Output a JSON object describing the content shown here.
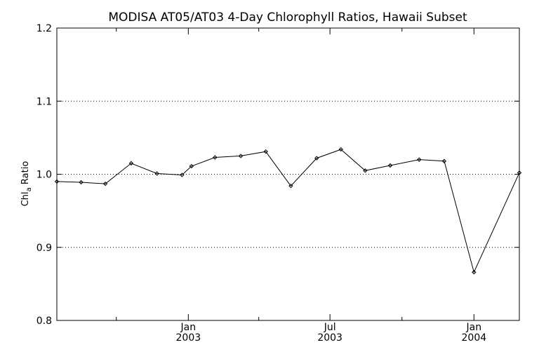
{
  "chart_data": {
    "type": "line",
    "title": "MODISA AT05/AT03 4-Day Chlorophyll Ratios, Hawaii Subset",
    "ylabel": {
      "main": "Chl",
      "sub": "a",
      "suffix": " Ratio"
    },
    "xlabel": "",
    "ylim": [
      0.8,
      1.2
    ],
    "yticks": [
      "0.8",
      "0.9",
      "1.0",
      "1.1",
      "1.2"
    ],
    "ytick_values": [
      0.8,
      0.9,
      1.0,
      1.1,
      1.2
    ],
    "ygrid_values": [
      0.9,
      1.0,
      1.1
    ],
    "xlim": [
      "2002-07-17",
      "2004-02-28"
    ],
    "xtick_labels": [
      {
        "date": "2003-01-01",
        "month": "Jan",
        "year": "2003"
      },
      {
        "date": "2003-07-01",
        "month": "Jul",
        "year": "2003"
      },
      {
        "date": "2004-01-01",
        "month": "Jan",
        "year": "2004"
      }
    ],
    "xminor_dates": [
      "2002-10-01",
      "2003-04-01",
      "2003-10-01"
    ],
    "grid": "dotted horizontal",
    "series": [
      {
        "color": "#000000",
        "points": [
          {
            "x": "2002-07-17",
            "y": 0.99
          },
          {
            "x": "2002-08-17",
            "y": 0.989
          },
          {
            "x": "2002-09-17",
            "y": 0.987
          },
          {
            "x": "2002-10-20",
            "y": 1.015
          },
          {
            "x": "2002-11-22",
            "y": 1.001
          },
          {
            "x": "2002-12-24",
            "y": 0.999
          },
          {
            "x": "2003-01-05",
            "y": 1.011
          },
          {
            "x": "2003-02-04",
            "y": 1.023
          },
          {
            "x": "2003-03-09",
            "y": 1.025
          },
          {
            "x": "2003-04-10",
            "y": 1.031
          },
          {
            "x": "2003-05-12",
            "y": 0.984
          },
          {
            "x": "2003-06-14",
            "y": 1.022
          },
          {
            "x": "2003-07-15",
            "y": 1.034
          },
          {
            "x": "2003-08-15",
            "y": 1.005
          },
          {
            "x": "2003-09-16",
            "y": 1.012
          },
          {
            "x": "2003-10-23",
            "y": 1.02
          },
          {
            "x": "2003-11-24",
            "y": 1.018
          },
          {
            "x": "2004-01-01",
            "y": 0.866
          },
          {
            "x": "2004-02-28",
            "y": 1.002
          }
        ]
      }
    ]
  }
}
